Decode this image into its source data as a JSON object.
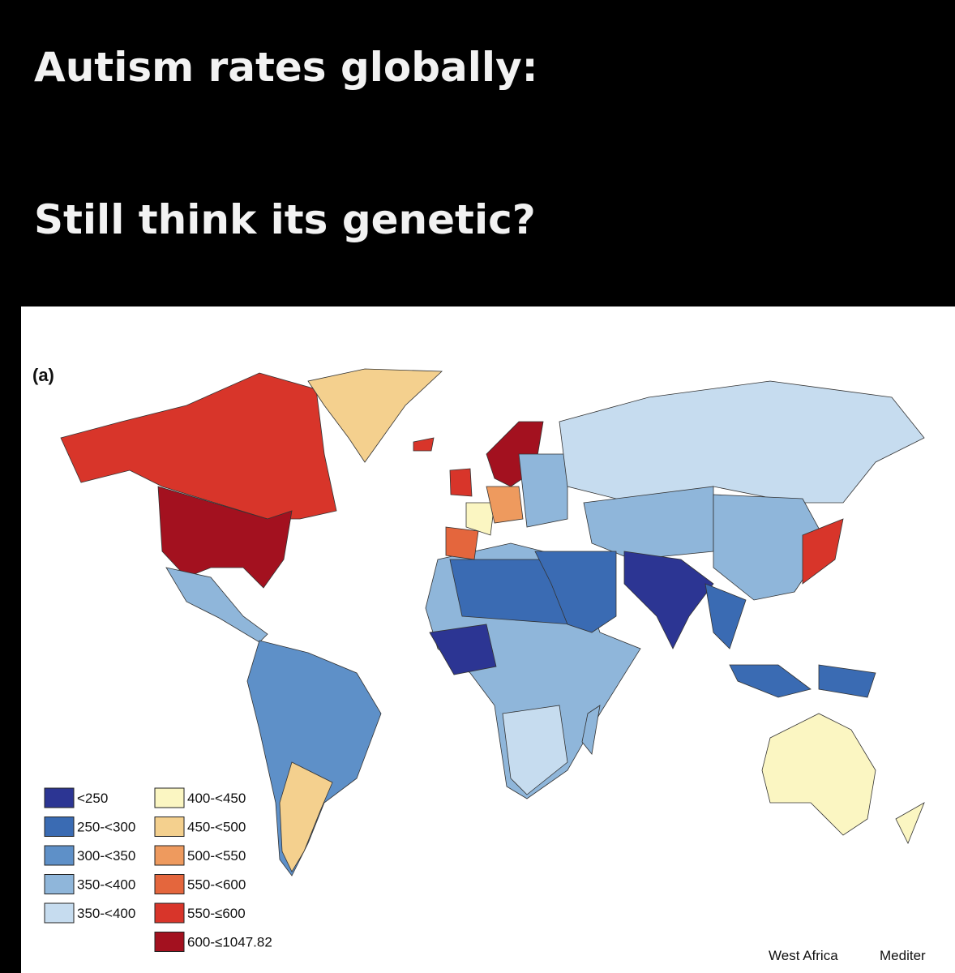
{
  "header": {
    "title": "Autism rates globally:",
    "subtitle": "Still think its genetic?"
  },
  "map": {
    "panel_label": "(a)",
    "legend": [
      {
        "label": "<250",
        "color": "#2c3593"
      },
      {
        "label": "250-<300",
        "color": "#3a6bb3"
      },
      {
        "label": "300-<350",
        "color": "#5e90c8"
      },
      {
        "label": "350-<400",
        "color": "#8fb6da"
      },
      {
        "label": "350-<400",
        "color": "#c6dcef"
      },
      {
        "label": "400-<450",
        "color": "#fbf6c2"
      },
      {
        "label": "450-<500",
        "color": "#f4d08e"
      },
      {
        "label": "500-<550",
        "color": "#ee9a5e"
      },
      {
        "label": "550-<600",
        "color": "#e4663d"
      },
      {
        "label": "550-≤600",
        "color": "#d8352a"
      },
      {
        "label": "600-≤1047.82",
        "color": "#a3111f"
      }
    ],
    "insets": [
      "West Africa",
      "Mediter"
    ]
  }
}
